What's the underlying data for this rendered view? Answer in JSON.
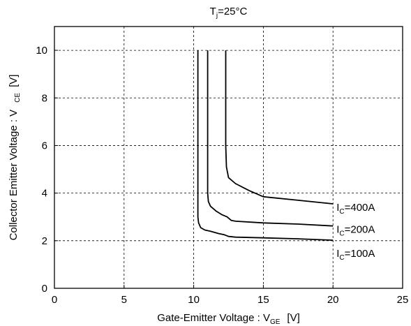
{
  "chart_data": {
    "type": "line",
    "title": "Tj=25°C",
    "xlabel": "Gate-Emitter Voltage : VGE [V]",
    "ylabel": "Collector Emitter Voltage : VCE [V]",
    "xlim": [
      0,
      25
    ],
    "ylim": [
      0,
      11
    ],
    "xticks": [
      0,
      5,
      10,
      15,
      20,
      25
    ],
    "yticks": [
      0,
      2,
      4,
      6,
      8,
      10
    ],
    "grid": true,
    "grid_style": "dashed",
    "series": [
      {
        "name": "IC=400A",
        "x": [
          12.3,
          12.3,
          12.35,
          12.5,
          13.0,
          14.0,
          15.0,
          17.5,
          20.0
        ],
        "y": [
          10.0,
          6.0,
          5.1,
          4.65,
          4.4,
          4.1,
          3.85,
          3.7,
          3.55
        ]
      },
      {
        "name": "IC=200A",
        "x": [
          11.0,
          11.0,
          11.05,
          11.2,
          11.6,
          12.0,
          12.4,
          12.7,
          13.0,
          15.0,
          17.5,
          20.0
        ],
        "y": [
          10.0,
          4.0,
          3.65,
          3.45,
          3.25,
          3.1,
          3.0,
          2.85,
          2.82,
          2.75,
          2.7,
          2.62
        ]
      },
      {
        "name": "IC=100A",
        "x": [
          10.3,
          10.3,
          10.35,
          10.5,
          10.8,
          11.2,
          11.8,
          12.2,
          12.5,
          13.0,
          15.0,
          17.5,
          20.0
        ],
        "y": [
          10.0,
          3.0,
          2.75,
          2.55,
          2.45,
          2.4,
          2.3,
          2.25,
          2.18,
          2.15,
          2.12,
          2.08,
          2.02
        ]
      }
    ]
  },
  "title_parts": {
    "main": "T",
    "sub": "j",
    "rest": "=25°C"
  },
  "xlabel_parts": {
    "main": "Gate-Emitter Voltage  :  V",
    "sub": "GE",
    "rest": "[V]"
  },
  "ylabel_parts": {
    "main": "Collector Emitter Voltage : V",
    "sub": "CE",
    "rest": "[V]"
  },
  "series_label_parts": [
    {
      "main": "I",
      "sub": "C",
      "rest": "=400A"
    },
    {
      "main": "I",
      "sub": "C",
      "rest": "=200A"
    },
    {
      "main": "I",
      "sub": "C",
      "rest": "=100A"
    }
  ]
}
